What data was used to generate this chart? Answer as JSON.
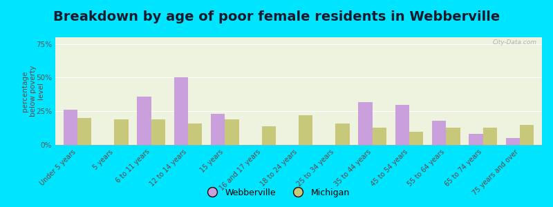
{
  "title": "Breakdown by age of poor female residents in Webberville",
  "ylabel": "percentage\nbelow poverty\nlevel",
  "categories": [
    "Under 5 years",
    "5 years",
    "6 to 11 years",
    "12 to 14 years",
    "15 years",
    "16 and 17 years",
    "18 to 24 years",
    "25 to 34 years",
    "35 to 44 years",
    "45 to 54 years",
    "55 to 64 years",
    "65 to 74 years",
    "75 years and over"
  ],
  "webberville": [
    26,
    0,
    36,
    50,
    23,
    0,
    0,
    0,
    32,
    30,
    18,
    8,
    5
  ],
  "michigan": [
    20,
    19,
    19,
    16,
    19,
    14,
    22,
    16,
    13,
    10,
    13,
    13,
    15
  ],
  "webberville_color": "#c9a0dc",
  "michigan_color": "#c8c87a",
  "plot_bg": "#eef3df",
  "outer_bg": "#00e5ff",
  "ylim": [
    0,
    80
  ],
  "yticks": [
    0,
    25,
    50,
    75
  ],
  "ytick_labels": [
    "0%",
    "25%",
    "50%",
    "75%"
  ],
  "title_fontsize": 14,
  "label_fontsize": 7,
  "ylabel_fontsize": 7.5,
  "tick_color": "#555555",
  "label_color": "#664444",
  "legend_labels": [
    "Webberville",
    "Michigan"
  ],
  "watermark": "City-Data.com"
}
